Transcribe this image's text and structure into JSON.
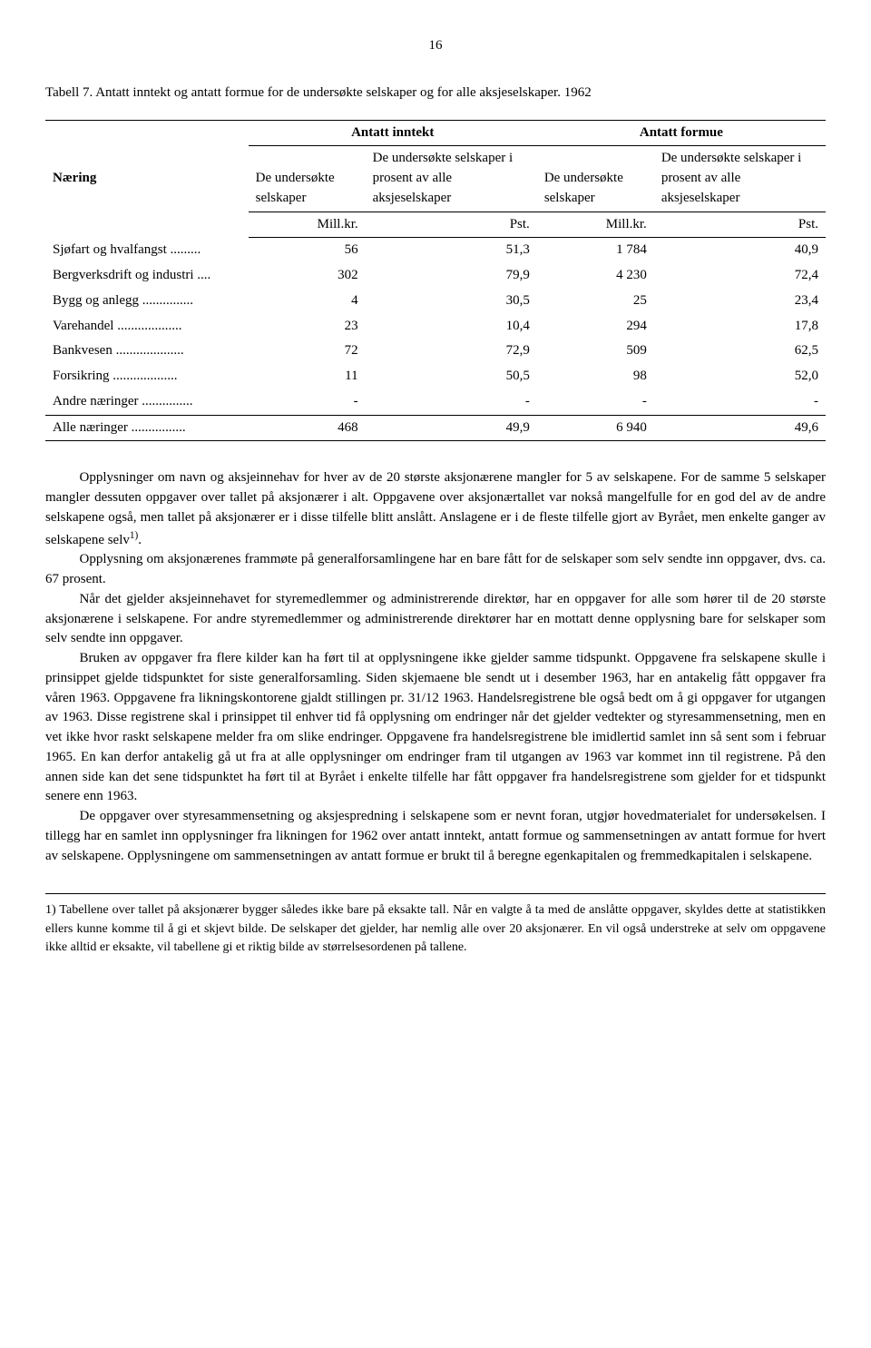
{
  "page_number": "16",
  "table": {
    "title": "Tabell 7. Antatt inntekt og antatt formue for de undersøkte selskaper og for alle aksjeselskaper. 1962",
    "col_group_1": "Antatt inntekt",
    "col_group_2": "Antatt formue",
    "row_label_header": "Næring",
    "sub1": "De undersøkte selskaper",
    "sub2": "De undersøkte selskaper i prosent av alle aksjeselskaper",
    "sub3": "De undersøkte selskaper",
    "sub4": "De undersøkte selskaper i prosent av alle aksjeselskaper",
    "unit1": "Mill.kr.",
    "unit2": "Pst.",
    "unit3": "Mill.kr.",
    "unit4": "Pst.",
    "rows": [
      {
        "label": "Sjøfart og hvalfangst .........",
        "c1": "56",
        "c2": "51,3",
        "c3": "1 784",
        "c4": "40,9"
      },
      {
        "label": "Bergverksdrift og industri ....",
        "c1": "302",
        "c2": "79,9",
        "c3": "4 230",
        "c4": "72,4"
      },
      {
        "label": "Bygg og anlegg ...............",
        "c1": "4",
        "c2": "30,5",
        "c3": "25",
        "c4": "23,4"
      },
      {
        "label": "Varehandel ...................",
        "c1": "23",
        "c2": "10,4",
        "c3": "294",
        "c4": "17,8"
      },
      {
        "label": "Bankvesen ....................",
        "c1": "72",
        "c2": "72,9",
        "c3": "509",
        "c4": "62,5"
      },
      {
        "label": "Forsikring ...................",
        "c1": "11",
        "c2": "50,5",
        "c3": "98",
        "c4": "52,0"
      },
      {
        "label": "Andre næringer ...............",
        "c1": "-",
        "c2": "-",
        "c3": "-",
        "c4": "-"
      }
    ],
    "total": {
      "label": "Alle næringer ................",
      "c1": "468",
      "c2": "49,9",
      "c3": "6 940",
      "c4": "49,6"
    }
  },
  "paragraphs": {
    "p1": "Opplysninger om navn og aksjeinnehav for hver av de 20 største aksjonærene mangler for 5 av selskapene. For de samme 5 selskaper mangler dessuten oppgaver over tallet på aksjonærer i alt. Oppgavene over aksjonærtallet var nokså mangelfulle for en god del av de andre selskapene også, men tallet på aksjonærer er i disse tilfelle blitt anslått. Anslagene er i de fleste tilfelle gjort av Byrået, men enkelte ganger av selskapene selv",
    "p1_sup": "1)",
    "p1_end": ".",
    "p2": "Opplysning om aksjonærenes frammøte på generalforsamlingene har en bare fått for de selskaper som selv sendte inn oppgaver, dvs. ca. 67 prosent.",
    "p3": "Når det gjelder aksjeinnehavet for styremedlemmer og administrerende direktør, har en oppgaver for alle som hører til de 20 største aksjonærene i selskapene. For andre styremedlemmer og administrerende direktører har en mottatt denne opplysning bare for selskaper som selv sendte inn oppgaver.",
    "p4": "Bruken av oppgaver fra flere kilder kan ha ført til at opplysningene ikke gjelder samme tidspunkt. Oppgavene fra selskapene skulle i prinsippet gjelde tidspunktet for siste generalforsamling. Siden skjemaene ble sendt ut i desember 1963, har en antakelig fått oppgaver fra våren 1963. Oppgavene fra likningskontorene gjaldt stillingen pr. 31/12 1963. Handelsregistrene ble også bedt om å gi oppgaver for utgangen av 1963. Disse registrene skal i prinsippet til enhver tid få opplysning om endringer når det gjelder vedtekter og styresammensetning, men en vet ikke hvor raskt selskapene melder fra om slike endringer. Oppgavene fra handelsregistrene ble imidlertid samlet inn så sent som i februar 1965. En kan derfor antakelig gå ut fra at alle opplysninger om endringer fram til utgangen av 1963 var kommet inn til registrene. På den annen side kan det sene tidspunktet ha ført til at Byrået i enkelte tilfelle har fått oppgaver fra handelsregistrene som gjelder for et tidspunkt senere enn 1963.",
    "p5": "De oppgaver over styresammensetning og aksjespredning i selskapene som er nevnt foran, utgjør hovedmaterialet for undersøkelsen. I tillegg har en samlet inn opplysninger fra likningen for 1962 over antatt inntekt, antatt formue og sammensetningen av antatt formue for hvert av selskapene. Opplysningene om sammensetningen av antatt formue er brukt til å beregne egenkapitalen og fremmedkapitalen i selskapene."
  },
  "footnote": "1) Tabellene over tallet på aksjonærer bygger således ikke bare på eksakte tall. Når en valgte å ta med de anslåtte oppgaver, skyldes dette at statistikken ellers kunne komme til å gi et skjevt bilde. De selskaper det gjelder, har nemlig alle over 20 aksjonærer. En vil også understreke at selv om oppgavene ikke alltid er eksakte, vil tabellene gi et riktig bilde av størrelsesordenen på tallene."
}
